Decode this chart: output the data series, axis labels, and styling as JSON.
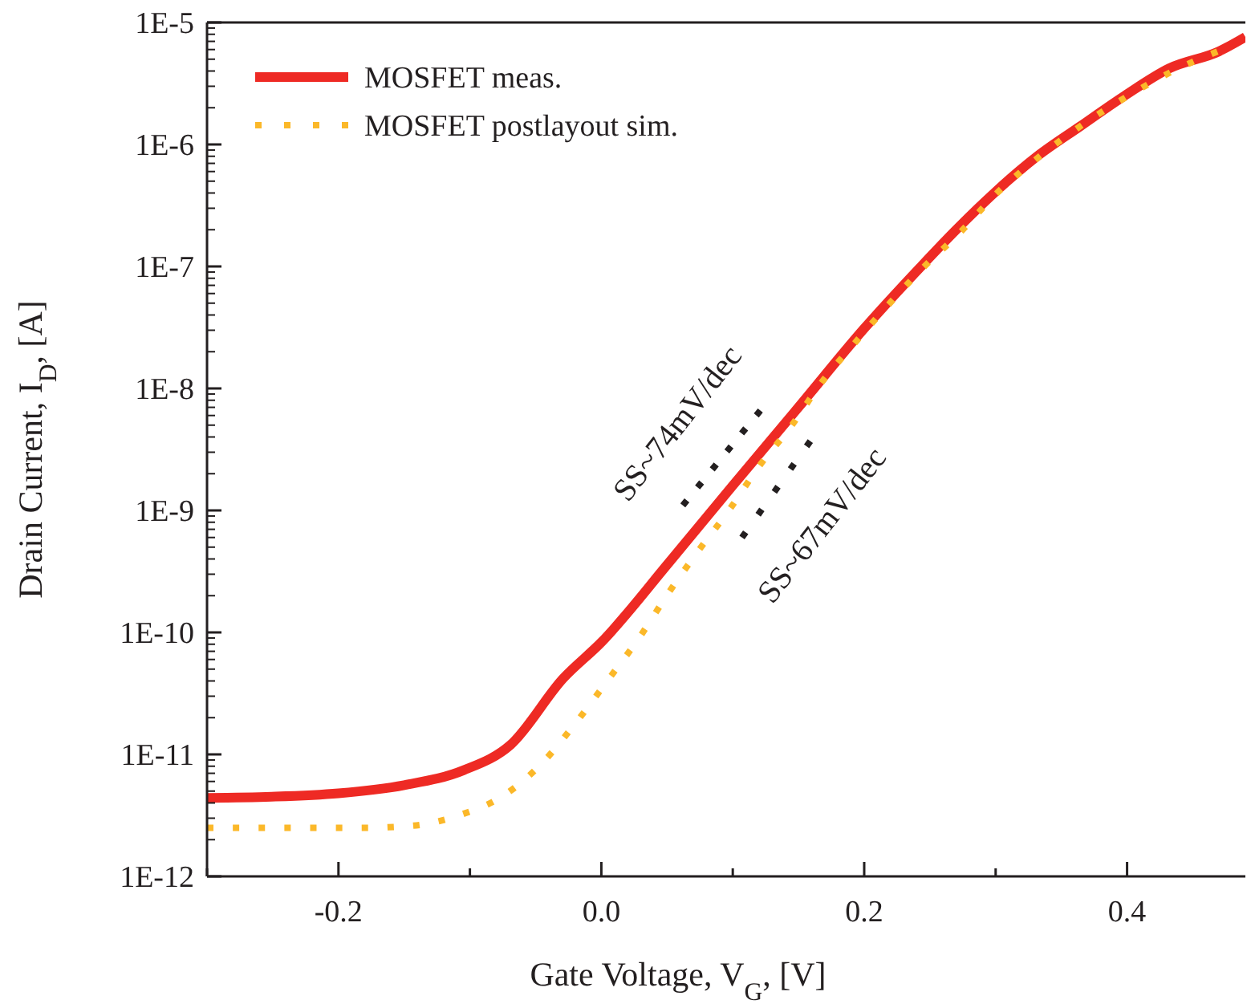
{
  "chart_data": {
    "type": "line",
    "xlabel": "Gate Voltage, V$_{G}$, [V]",
    "ylabel": "Drain Current, I$_{D}$, [A]",
    "log": "y",
    "grid": false,
    "legend": "top left",
    "xlim": [
      -0.3,
      0.49
    ],
    "ylim": [
      1e-12,
      1e-05
    ],
    "xticks": [
      {
        "value": -0.3,
        "label": null
      },
      {
        "value": -0.2,
        "label": "-0.2"
      },
      {
        "value": -0.1,
        "label": null
      },
      {
        "value": 0,
        "label": "0.0"
      },
      {
        "value": 0.1,
        "label": null
      },
      {
        "value": 0.2,
        "label": "0.2"
      },
      {
        "value": 0.3,
        "label": null
      },
      {
        "value": 0.4,
        "label": "0.4"
      }
    ],
    "yticks": [
      {
        "value": 1e-12,
        "label": "1E-12"
      },
      {
        "value": 1e-11,
        "label": "1E-11"
      },
      {
        "value": 1e-10,
        "label": "1E-10"
      },
      {
        "value": 1e-09,
        "label": "1E-9"
      },
      {
        "value": 1e-08,
        "label": "1E-8"
      },
      {
        "value": 1e-07,
        "label": "1E-7"
      },
      {
        "value": 1e-06,
        "label": "1E-6"
      },
      {
        "value": 1e-05,
        "label": "1E-5"
      }
    ],
    "series": [
      {
        "name": "MOSFET meas.",
        "color": "#ee2a24",
        "line_style": "solid",
        "x": [
          -0.3,
          -0.251,
          -0.2,
          -0.15,
          -0.105,
          -0.069,
          -0.029,
          0,
          0.052,
          0.1,
          0.149,
          0.2,
          0.2425,
          0.27,
          0.3,
          0.331,
          0.364,
          0.398,
          0.432,
          0.47,
          0.49
        ],
        "values": [
          4.4e-12,
          4.5e-12,
          4.8e-12,
          5.6e-12,
          7.4e-12,
          1.2e-11,
          4.2e-11,
          8.3e-11,
          3.8e-10,
          1.6e-09,
          6.8e-09,
          3.1e-08,
          9.8e-08,
          2e-07,
          4.1e-07,
          7.9e-07,
          1.4e-06,
          2.5e-06,
          4.2e-06,
          5.8e-06,
          7.6e-06
        ]
      },
      {
        "name": "MOSFET postlayout sim.",
        "color": "#fbb829",
        "line_style": "dotted",
        "x": [
          -0.3,
          -0.263,
          -0.223,
          -0.183,
          -0.144,
          -0.107,
          -0.073,
          -0.045,
          -0.018,
          0.006,
          0.029,
          0.051,
          0.074,
          0.097,
          0.12,
          0.145,
          0.167,
          0.192,
          0.218,
          0.245,
          0.273,
          0.3,
          0.331,
          0.364,
          0.398,
          0.433,
          0.469
        ],
        "values": [
          2.5e-12,
          2.5e-12,
          2.5e-12,
          2.5e-12,
          2.6e-12,
          3.2e-12,
          4.7e-12,
          8.5e-12,
          1.9e-11,
          4.2e-11,
          9.1e-11,
          2.1e-10,
          4.7e-10,
          1e-09,
          2.3e-09,
          5e-09,
          1.1e-08,
          2.3e-08,
          4.8e-08,
          9.8e-08,
          1.9e-07,
          3.9e-07,
          7.6e-07,
          1.4e-06,
          2.4e-06,
          3.9e-06,
          5.8e-06
        ]
      },
      {
        "color": "#231f20",
        "line_style": "dotted",
        "x": [
          0.062,
          0.121
        ],
        "values": [
          1.1e-09,
          6.6e-09
        ]
      },
      {
        "color": "#231f20",
        "line_style": "dotted",
        "x": [
          0.107,
          0.159
        ],
        "values": [
          6e-10,
          3.7e-09
        ]
      }
    ],
    "annotations": [
      "SS~74mV/dec",
      "SS~67mV/dec"
    ]
  }
}
